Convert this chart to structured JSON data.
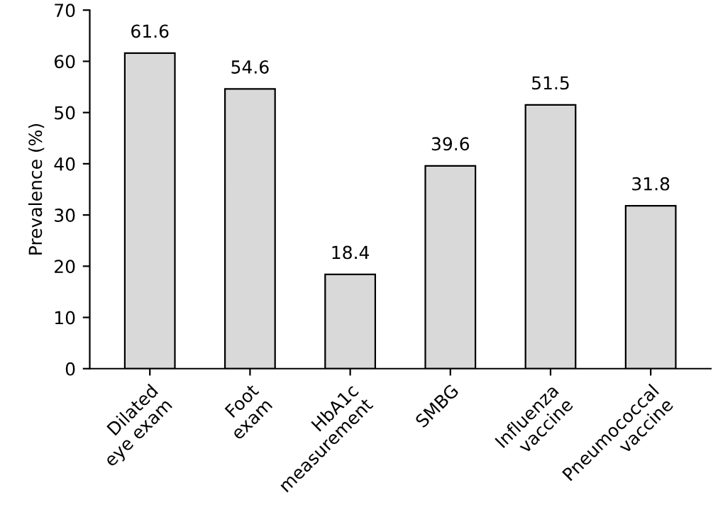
{
  "chart_data": {
    "type": "bar",
    "ylabel": "Prevalence (%)",
    "categories": [
      "Dilated\neye exam",
      "Foot\nexam",
      "HbA1c\nmeasurement",
      "SMBG",
      "Influenza\nvaccine",
      "Pneumococcal\nvaccine"
    ],
    "values": [
      61.6,
      54.6,
      18.4,
      39.6,
      51.5,
      31.8
    ],
    "color": "#d9d9d9",
    "ylim": [
      0,
      70
    ],
    "yticks": [
      0,
      10,
      20,
      30,
      40,
      50,
      60,
      70
    ],
    "grid": false,
    "data_labels": true
  }
}
